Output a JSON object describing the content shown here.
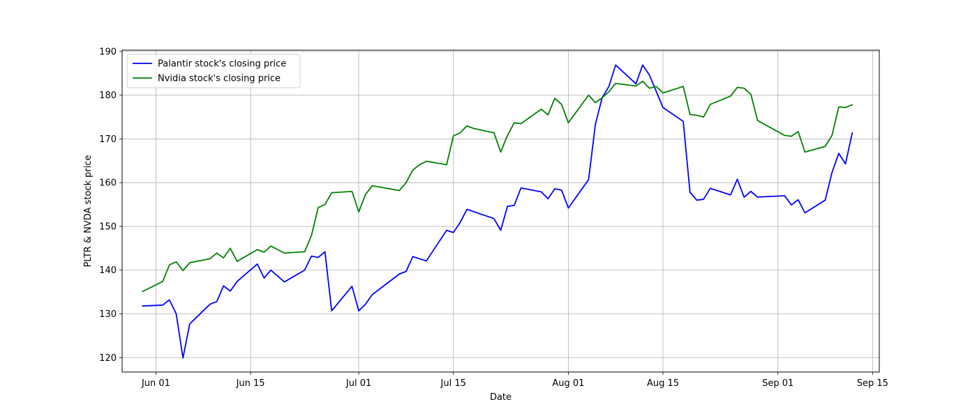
{
  "chart_data": {
    "type": "line",
    "title": "",
    "xlabel": "Date",
    "ylabel": "PLTR & NVDA stock price",
    "ylim": [
      116.7,
      190.3
    ],
    "xlim": [
      "2025-05-27",
      "2025-09-16"
    ],
    "y_ticks": [
      120,
      130,
      140,
      150,
      160,
      170,
      180,
      190
    ],
    "x_ticks": [
      {
        "date": "2025-06-01",
        "label": "Jun 01"
      },
      {
        "date": "2025-06-15",
        "label": "Jun 15"
      },
      {
        "date": "2025-07-01",
        "label": "Jul 01"
      },
      {
        "date": "2025-07-15",
        "label": "Jul 15"
      },
      {
        "date": "2025-08-01",
        "label": "Aug 01"
      },
      {
        "date": "2025-08-15",
        "label": "Aug 15"
      },
      {
        "date": "2025-09-01",
        "label": "Sep 01"
      },
      {
        "date": "2025-09-15",
        "label": "Sep 15"
      }
    ],
    "grid": true,
    "legend_position": "top-left",
    "series": [
      {
        "name": "Palantir stock's closing price",
        "color": "#0000ff",
        "points": [
          [
            "2025-05-30",
            131.8
          ],
          [
            "2025-06-02",
            132.0
          ],
          [
            "2025-06-03",
            133.2
          ],
          [
            "2025-06-04",
            130.0
          ],
          [
            "2025-06-05",
            119.9
          ],
          [
            "2025-06-06",
            127.7
          ],
          [
            "2025-06-09",
            132.2
          ],
          [
            "2025-06-10",
            132.8
          ],
          [
            "2025-06-11",
            136.4
          ],
          [
            "2025-06-12",
            135.2
          ],
          [
            "2025-06-13",
            137.4
          ],
          [
            "2025-06-16",
            141.4
          ],
          [
            "2025-06-17",
            138.2
          ],
          [
            "2025-06-18",
            140.0
          ],
          [
            "2025-06-20",
            137.3
          ],
          [
            "2025-06-23",
            140.0
          ],
          [
            "2025-06-24",
            143.2
          ],
          [
            "2025-06-25",
            142.9
          ],
          [
            "2025-06-26",
            144.2
          ],
          [
            "2025-06-27",
            130.7
          ],
          [
            "2025-06-30",
            136.3
          ],
          [
            "2025-07-01",
            130.7
          ],
          [
            "2025-07-02",
            132.2
          ],
          [
            "2025-07-03",
            134.4
          ],
          [
            "2025-07-07",
            139.1
          ],
          [
            "2025-07-08",
            139.7
          ],
          [
            "2025-07-09",
            143.1
          ],
          [
            "2025-07-10",
            142.6
          ],
          [
            "2025-07-11",
            142.1
          ],
          [
            "2025-07-14",
            149.1
          ],
          [
            "2025-07-15",
            148.6
          ],
          [
            "2025-07-16",
            150.9
          ],
          [
            "2025-07-17",
            153.9
          ],
          [
            "2025-07-21",
            151.8
          ],
          [
            "2025-07-22",
            149.1
          ],
          [
            "2025-07-23",
            154.6
          ],
          [
            "2025-07-24",
            154.8
          ],
          [
            "2025-07-25",
            158.8
          ],
          [
            "2025-07-28",
            157.9
          ],
          [
            "2025-07-29",
            156.3
          ],
          [
            "2025-07-30",
            158.6
          ],
          [
            "2025-07-31",
            158.3
          ],
          [
            "2025-08-01",
            154.2
          ],
          [
            "2025-08-04",
            160.7
          ],
          [
            "2025-08-05",
            173.3
          ],
          [
            "2025-08-06",
            179.4
          ],
          [
            "2025-08-07",
            182.0
          ],
          [
            "2025-08-08",
            186.9
          ],
          [
            "2025-08-11",
            182.6
          ],
          [
            "2025-08-12",
            186.9
          ],
          [
            "2025-08-13",
            184.6
          ],
          [
            "2025-08-14",
            180.9
          ],
          [
            "2025-08-15",
            177.2
          ],
          [
            "2025-08-18",
            174.0
          ],
          [
            "2025-08-19",
            157.8
          ],
          [
            "2025-08-20",
            156.0
          ],
          [
            "2025-08-21",
            156.2
          ],
          [
            "2025-08-22",
            158.7
          ],
          [
            "2025-08-25",
            157.2
          ],
          [
            "2025-08-26",
            160.8
          ],
          [
            "2025-08-27",
            156.7
          ],
          [
            "2025-08-28",
            158.0
          ],
          [
            "2025-08-29",
            156.7
          ],
          [
            "2025-09-02",
            157.0
          ],
          [
            "2025-09-03",
            154.9
          ],
          [
            "2025-09-04",
            156.1
          ],
          [
            "2025-09-05",
            153.1
          ],
          [
            "2025-09-08",
            156.0
          ],
          [
            "2025-09-09",
            162.3
          ],
          [
            "2025-09-10",
            166.7
          ],
          [
            "2025-09-11",
            164.3
          ],
          [
            "2025-09-12",
            171.4
          ]
        ]
      },
      {
        "name": "Nvidia stock's closing price",
        "color": "#008000",
        "points": [
          [
            "2025-05-30",
            135.1
          ],
          [
            "2025-06-02",
            137.4
          ],
          [
            "2025-06-03",
            141.2
          ],
          [
            "2025-06-04",
            141.9
          ],
          [
            "2025-06-05",
            139.9
          ],
          [
            "2025-06-06",
            141.7
          ],
          [
            "2025-06-09",
            142.6
          ],
          [
            "2025-06-10",
            143.9
          ],
          [
            "2025-06-11",
            142.8
          ],
          [
            "2025-06-12",
            145.0
          ],
          [
            "2025-06-13",
            142.0
          ],
          [
            "2025-06-16",
            144.7
          ],
          [
            "2025-06-17",
            144.1
          ],
          [
            "2025-06-18",
            145.5
          ],
          [
            "2025-06-20",
            143.9
          ],
          [
            "2025-06-23",
            144.2
          ],
          [
            "2025-06-24",
            147.9
          ],
          [
            "2025-06-25",
            154.3
          ],
          [
            "2025-06-26",
            155.0
          ],
          [
            "2025-06-27",
            157.7
          ],
          [
            "2025-06-30",
            158.0
          ],
          [
            "2025-07-01",
            153.3
          ],
          [
            "2025-07-02",
            157.3
          ],
          [
            "2025-07-03",
            159.3
          ],
          [
            "2025-07-07",
            158.2
          ],
          [
            "2025-07-08",
            160.0
          ],
          [
            "2025-07-09",
            162.9
          ],
          [
            "2025-07-10",
            164.1
          ],
          [
            "2025-07-11",
            164.9
          ],
          [
            "2025-07-14",
            164.1
          ],
          [
            "2025-07-15",
            170.7
          ],
          [
            "2025-07-16",
            171.4
          ],
          [
            "2025-07-17",
            173.0
          ],
          [
            "2025-07-18",
            172.4
          ],
          [
            "2025-07-21",
            171.4
          ],
          [
            "2025-07-22",
            167.0
          ],
          [
            "2025-07-23",
            170.8
          ],
          [
            "2025-07-24",
            173.7
          ],
          [
            "2025-07-25",
            173.5
          ],
          [
            "2025-07-28",
            176.8
          ],
          [
            "2025-07-29",
            175.5
          ],
          [
            "2025-07-30",
            179.3
          ],
          [
            "2025-07-31",
            177.9
          ],
          [
            "2025-08-01",
            173.7
          ],
          [
            "2025-08-04",
            180.0
          ],
          [
            "2025-08-05",
            178.3
          ],
          [
            "2025-08-06",
            179.4
          ],
          [
            "2025-08-07",
            180.8
          ],
          [
            "2025-08-08",
            182.7
          ],
          [
            "2025-08-11",
            182.1
          ],
          [
            "2025-08-12",
            183.2
          ],
          [
            "2025-08-13",
            181.6
          ],
          [
            "2025-08-14",
            182.0
          ],
          [
            "2025-08-15",
            180.5
          ],
          [
            "2025-08-18",
            182.0
          ],
          [
            "2025-08-19",
            175.6
          ],
          [
            "2025-08-20",
            175.4
          ],
          [
            "2025-08-21",
            175.0
          ],
          [
            "2025-08-22",
            177.9
          ],
          [
            "2025-08-25",
            179.8
          ],
          [
            "2025-08-26",
            181.8
          ],
          [
            "2025-08-27",
            181.6
          ],
          [
            "2025-08-28",
            180.2
          ],
          [
            "2025-08-29",
            174.2
          ],
          [
            "2025-09-02",
            170.8
          ],
          [
            "2025-09-03",
            170.6
          ],
          [
            "2025-09-04",
            171.7
          ],
          [
            "2025-09-05",
            167.0
          ],
          [
            "2025-09-08",
            168.3
          ],
          [
            "2025-09-09",
            170.8
          ],
          [
            "2025-09-10",
            177.3
          ],
          [
            "2025-09-11",
            177.2
          ],
          [
            "2025-09-12",
            177.8
          ]
        ]
      }
    ]
  }
}
